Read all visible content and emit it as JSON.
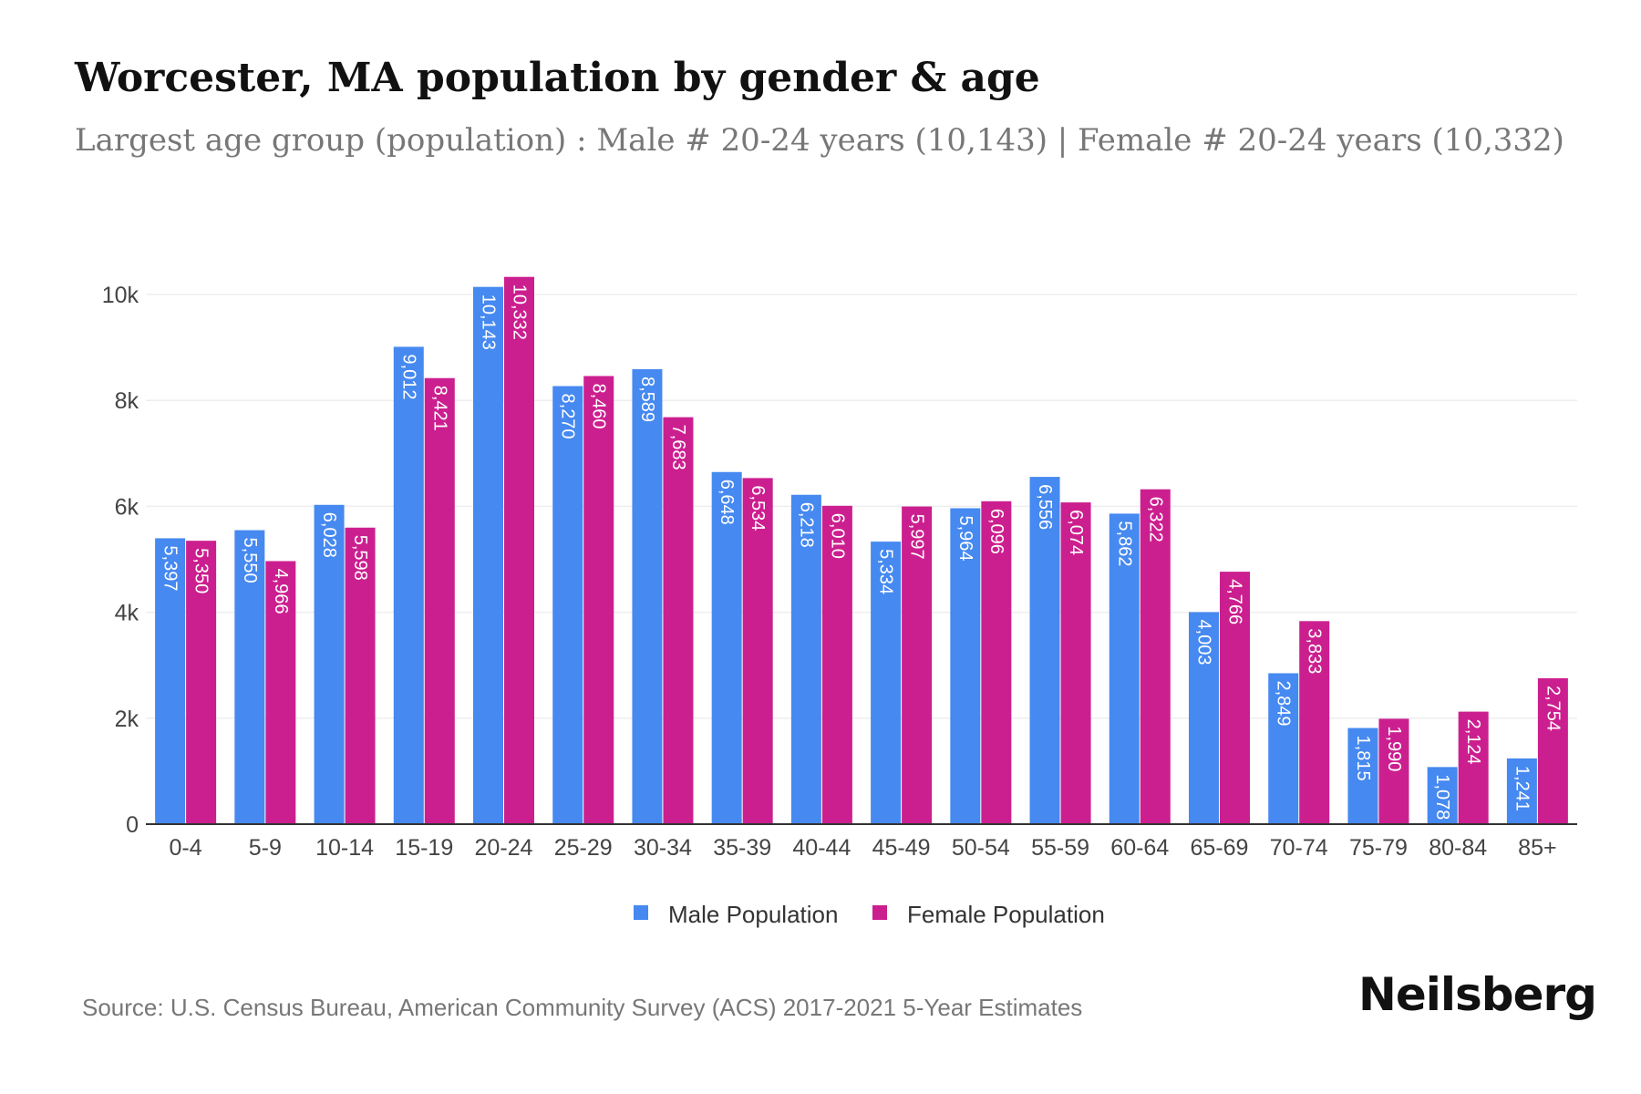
{
  "title": "Worcester, MA population by gender & age",
  "subtitle": "Largest age group (population) : Male # 20-24 years (10,143) | Female # 20-24 years (10,332)",
  "source": "Source: U.S. Census Bureau, American Community Survey (ACS) 2017-2021 5-Year Estimates",
  "brand": "Neilsberg",
  "chart_data": {
    "type": "bar",
    "title": "Worcester, MA population by gender & age",
    "subtitle": "Largest age group (population) : Male # 20-24 years (10,143) | Female # 20-24 years (10,332)",
    "xlabel": "",
    "ylabel": "",
    "ylim": [
      0,
      10000
    ],
    "yticks": [
      0,
      2000,
      4000,
      6000,
      8000,
      10000
    ],
    "ytick_labels": [
      "0",
      "2k",
      "4k",
      "6k",
      "8k",
      "10k"
    ],
    "grid": true,
    "legend": "bottom-center",
    "categories": [
      "0-4",
      "5-9",
      "10-14",
      "15-19",
      "20-24",
      "25-29",
      "30-34",
      "35-39",
      "40-44",
      "45-49",
      "50-54",
      "55-59",
      "60-64",
      "65-69",
      "70-74",
      "75-79",
      "80-84",
      "85+"
    ],
    "series": [
      {
        "name": "Male Population",
        "color": "#4689f0",
        "values": [
          5397,
          5550,
          6028,
          9012,
          10143,
          8270,
          8589,
          6648,
          6218,
          5334,
          5964,
          6556,
          5862,
          4003,
          2849,
          1815,
          1078,
          1241
        ],
        "labels": [
          "5,397",
          "5,550",
          "6,028",
          "9,012",
          "10,143",
          "8,270",
          "8,589",
          "6,648",
          "6,218",
          "5,334",
          "5,964",
          "6,556",
          "5,862",
          "4,003",
          "2,849",
          "1,815",
          "1,078",
          "1,241"
        ]
      },
      {
        "name": "Female Population",
        "color": "#cc1f8f",
        "values": [
          5350,
          4966,
          5598,
          8421,
          10332,
          8460,
          7683,
          6534,
          6010,
          5997,
          6096,
          6074,
          6322,
          4766,
          3833,
          1990,
          2124,
          2754
        ],
        "labels": [
          "5,350",
          "4,966",
          "5,598",
          "8,421",
          "10,332",
          "8,460",
          "7,683",
          "6,534",
          "6,010",
          "5,997",
          "6,096",
          "6,074",
          "6,322",
          "4,766",
          "3,833",
          "1,990",
          "2,124",
          "2,754"
        ]
      }
    ]
  }
}
